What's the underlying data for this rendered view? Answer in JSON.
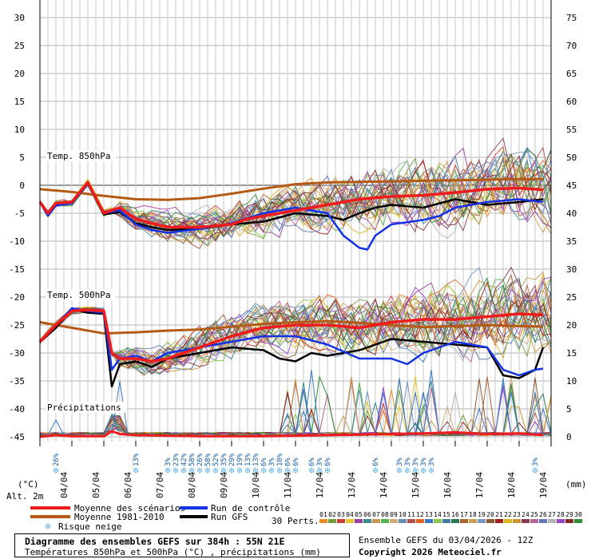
{
  "chart_data": {
    "type": "line",
    "title": "Diagramme des ensembles GEFS sur 384h : 55N 21E",
    "subtitle": "Températures 850hPa et 500hPa (°C) , précipitations (mm)",
    "run_info": "Ensemble GEFS du 03/04/2026 - 12Z",
    "copyright": "Copyright 2026 Meteociel.fr",
    "left_unit": "(°C)",
    "right_unit": "(mm)",
    "alt_label": "Alt. 2m",
    "left_ylim": [
      -45,
      30
    ],
    "right_ylim": [
      0,
      75
    ],
    "left_ticks": [
      "30",
      "25",
      "20",
      "15",
      "10",
      "5",
      "0",
      "-5",
      "-10",
      "-15",
      "-20",
      "-25",
      "-30",
      "-35",
      "-40",
      "-45"
    ],
    "right_ticks": [
      "75",
      "70",
      "65",
      "60",
      "55",
      "50",
      "45",
      "40",
      "35",
      "30",
      "25",
      "20",
      "15",
      "10",
      "5",
      "0"
    ],
    "dates": [
      "04/04",
      "05/04",
      "06/04",
      "07/04",
      "08/04",
      "09/04",
      "10/04",
      "11/04",
      "12/04",
      "13/04",
      "14/04",
      "15/04",
      "16/04",
      "17/04",
      "18/04",
      "19/04"
    ],
    "section_labels": [
      "Temp. 850hPa",
      "Temp. 500hPa",
      "Précipitations"
    ],
    "snow_risk": [
      {
        "t": 0.5,
        "pct": "26%"
      },
      {
        "t": 3.0,
        "pct": "13%"
      },
      {
        "t": 4.0,
        "pct": "3%"
      },
      {
        "t": 4.25,
        "pct": "23%"
      },
      {
        "t": 4.5,
        "pct": "42%"
      },
      {
        "t": 4.75,
        "pct": "58%"
      },
      {
        "t": 5.0,
        "pct": "26%"
      },
      {
        "t": 5.25,
        "pct": "58%"
      },
      {
        "t": 5.5,
        "pct": "52%"
      },
      {
        "t": 5.75,
        "pct": "35%"
      },
      {
        "t": 6.0,
        "pct": "29%"
      },
      {
        "t": 6.25,
        "pct": "19%"
      },
      {
        "t": 6.5,
        "pct": "13%"
      },
      {
        "t": 6.75,
        "pct": "13%"
      },
      {
        "t": 7.0,
        "pct": "6%"
      },
      {
        "t": 7.25,
        "pct": "3%"
      },
      {
        "t": 7.5,
        "pct": "10%"
      },
      {
        "t": 7.75,
        "pct": "6%"
      },
      {
        "t": 8.0,
        "pct": "6%"
      },
      {
        "t": 8.5,
        "pct": "6%"
      },
      {
        "t": 8.75,
        "pct": "3%"
      },
      {
        "t": 9.0,
        "pct": "6%"
      },
      {
        "t": 10.5,
        "pct": "6%"
      },
      {
        "t": 11.25,
        "pct": "3%"
      },
      {
        "t": 11.5,
        "pct": "3%"
      },
      {
        "t": 11.75,
        "pct": "3%"
      },
      {
        "t": 12.0,
        "pct": "3%"
      },
      {
        "t": 12.25,
        "pct": "3%"
      },
      {
        "t": 15.5,
        "pct": "3%"
      }
    ],
    "legend": {
      "mean": "Moyenne des scénarios",
      "climo": "Moyenne 1981-2010",
      "snow": "Risque neige",
      "control": "Run de contrôle",
      "gfs": "Run GFS",
      "perts": "30 Perts."
    },
    "colors": {
      "mean": "#ee1c1c",
      "climo": "#b45a14",
      "control": "#1432e6",
      "gfs": "#000000",
      "grid": "#b4b4b4",
      "snow": "#66b3e6"
    },
    "pert_labels": [
      "01",
      "02",
      "03",
      "04",
      "05",
      "06",
      "07",
      "08",
      "09",
      "10",
      "11",
      "12",
      "13",
      "14",
      "15",
      "16",
      "17",
      "18",
      "19",
      "20",
      "21",
      "22",
      "23",
      "24",
      "25",
      "26",
      "27",
      "28",
      "29",
      "30"
    ],
    "pert_colors": [
      "#f08c28",
      "#6ea03c",
      "#c83c3c",
      "#e8c828",
      "#9c3ca0",
      "#3c8c8c",
      "#c89650",
      "#50b450",
      "#d2aa78",
      "#648cb4",
      "#b45050",
      "#e6641e",
      "#3c78c8",
      "#8cc850",
      "#4678a0",
      "#287850",
      "#aa6432",
      "#c8a050",
      "#7896c8",
      "#8c5a32",
      "#a01e1e",
      "#dcb41e",
      "#c89632",
      "#8c3c50",
      "#b46496",
      "#6478b4",
      "#b4b4b4",
      "#9646c8",
      "#822828",
      "#328c32"
    ],
    "t850": {
      "mean": [
        [
          0,
          -3
        ],
        [
          0.25,
          -5
        ],
        [
          0.5,
          -3.2
        ],
        [
          1,
          -3
        ],
        [
          1.5,
          0.5
        ],
        [
          2,
          -5
        ],
        [
          2.5,
          -4
        ],
        [
          3,
          -6
        ],
        [
          3.5,
          -6.8
        ],
        [
          4,
          -7.5
        ],
        [
          5,
          -7.5
        ],
        [
          6,
          -7
        ],
        [
          6.5,
          -6
        ],
        [
          7,
          -5.5
        ],
        [
          8,
          -4.5
        ],
        [
          9,
          -3.5
        ],
        [
          10,
          -2.5
        ],
        [
          11,
          -2
        ],
        [
          12,
          -1.8
        ],
        [
          13,
          -1.3
        ],
        [
          14,
          -0.7
        ],
        [
          15,
          -0.5
        ],
        [
          15.75,
          -0.8
        ]
      ],
      "climo": [
        [
          0,
          -0.7
        ],
        [
          1,
          -1.2
        ],
        [
          2,
          -1.9
        ],
        [
          3,
          -2.5
        ],
        [
          4,
          -2.6
        ],
        [
          5,
          -2.3
        ],
        [
          6,
          -1.5
        ],
        [
          7,
          -0.6
        ],
        [
          8,
          0.2
        ],
        [
          9,
          0.5
        ],
        [
          10,
          0.6
        ],
        [
          11,
          0.7
        ],
        [
          12,
          0.8
        ],
        [
          13,
          0.9
        ],
        [
          14,
          1.0
        ],
        [
          15,
          1.1
        ],
        [
          15.75,
          1.1
        ]
      ],
      "control": [
        [
          0,
          -3
        ],
        [
          0.25,
          -5.5
        ],
        [
          0.5,
          -3.6
        ],
        [
          1,
          -3.2
        ],
        [
          1.5,
          0.2
        ],
        [
          2,
          -5
        ],
        [
          2.5,
          -4.5
        ],
        [
          3,
          -7
        ],
        [
          3.5,
          -8
        ],
        [
          4,
          -8.5
        ],
        [
          5,
          -7.8
        ],
        [
          6,
          -6.8
        ],
        [
          7,
          -5
        ],
        [
          8,
          -4
        ],
        [
          9,
          -5
        ],
        [
          9.5,
          -9
        ],
        [
          10,
          -11.2
        ],
        [
          10.25,
          -11.5
        ],
        [
          10.5,
          -9
        ],
        [
          11,
          -7
        ],
        [
          12,
          -6.2
        ],
        [
          12.5,
          -5.5
        ],
        [
          13,
          -4
        ],
        [
          14,
          -3
        ],
        [
          15,
          -2.5
        ],
        [
          15.75,
          -3
        ]
      ],
      "gfs": [
        [
          0,
          -3
        ],
        [
          0.25,
          -5
        ],
        [
          0.5,
          -3.5
        ],
        [
          1,
          -3.2
        ],
        [
          1.5,
          0.3
        ],
        [
          2,
          -5.2
        ],
        [
          2.5,
          -4.8
        ],
        [
          3,
          -6.8
        ],
        [
          3.5,
          -7.5
        ],
        [
          4,
          -8
        ],
        [
          5,
          -7.8
        ],
        [
          6,
          -7
        ],
        [
          7,
          -6.5
        ],
        [
          8,
          -5
        ],
        [
          9,
          -5.5
        ],
        [
          9.5,
          -6.2
        ],
        [
          10,
          -5
        ],
        [
          10.5,
          -4
        ],
        [
          11,
          -3.5
        ],
        [
          12,
          -4
        ],
        [
          13,
          -2.5
        ],
        [
          14,
          -3.5
        ],
        [
          15,
          -3
        ],
        [
          15.75,
          -2.5
        ]
      ]
    },
    "t500": {
      "mean": [
        [
          0,
          -28
        ],
        [
          0.5,
          -25
        ],
        [
          1,
          -22.5
        ],
        [
          1.5,
          -22.3
        ],
        [
          2,
          -22.5
        ],
        [
          2.25,
          -30
        ],
        [
          2.5,
          -31
        ],
        [
          3,
          -31
        ],
        [
          3.5,
          -31.5
        ],
        [
          4,
          -31
        ],
        [
          5,
          -29
        ],
        [
          6,
          -27
        ],
        [
          7,
          -25.5
        ],
        [
          8,
          -25
        ],
        [
          9,
          -25
        ],
        [
          10,
          -25.5
        ],
        [
          11,
          -24.5
        ],
        [
          12,
          -24
        ],
        [
          13,
          -24
        ],
        [
          14,
          -23.5
        ],
        [
          15,
          -23
        ],
        [
          15.75,
          -23.2
        ]
      ],
      "climo": [
        [
          0,
          -24.5
        ],
        [
          1,
          -25.5
        ],
        [
          2,
          -26.5
        ],
        [
          3,
          -26.3
        ],
        [
          4,
          -26
        ],
        [
          5,
          -25.8
        ],
        [
          6,
          -25.3
        ],
        [
          7,
          -24.8
        ],
        [
          8,
          -24.5
        ],
        [
          9,
          -24.3
        ],
        [
          10,
          -24.6
        ],
        [
          11,
          -25
        ],
        [
          12,
          -25.4
        ],
        [
          13,
          -25.2
        ],
        [
          14,
          -25
        ],
        [
          15,
          -25.2
        ],
        [
          15.75,
          -25.3
        ]
      ],
      "control": [
        [
          0,
          -28
        ],
        [
          0.5,
          -25
        ],
        [
          1,
          -22
        ],
        [
          1.5,
          -22.5
        ],
        [
          2,
          -22.8
        ],
        [
          2.25,
          -33
        ],
        [
          2.5,
          -31
        ],
        [
          3,
          -30.5
        ],
        [
          3.5,
          -31.5
        ],
        [
          4,
          -30
        ],
        [
          5,
          -29
        ],
        [
          6,
          -28
        ],
        [
          7,
          -27
        ],
        [
          8,
          -27
        ],
        [
          9,
          -28.5
        ],
        [
          10,
          -31
        ],
        [
          11,
          -31
        ],
        [
          11.5,
          -32
        ],
        [
          12,
          -30
        ],
        [
          13,
          -28
        ],
        [
          14,
          -29
        ],
        [
          14.5,
          -33
        ],
        [
          15,
          -34
        ],
        [
          15.5,
          -33
        ],
        [
          15.75,
          -32.8
        ]
      ],
      "gfs": [
        [
          0,
          -28
        ],
        [
          0.5,
          -25.5
        ],
        [
          1,
          -22.2
        ],
        [
          1.5,
          -22.8
        ],
        [
          2,
          -23
        ],
        [
          2.25,
          -36
        ],
        [
          2.5,
          -32
        ],
        [
          3,
          -31.5
        ],
        [
          3.5,
          -32.5
        ],
        [
          4,
          -31
        ],
        [
          5,
          -30
        ],
        [
          6,
          -29
        ],
        [
          7,
          -29.5
        ],
        [
          7.5,
          -31
        ],
        [
          8,
          -31.5
        ],
        [
          8.5,
          -30
        ],
        [
          9,
          -30.5
        ],
        [
          10,
          -29.5
        ],
        [
          11,
          -27.5
        ],
        [
          12,
          -28
        ],
        [
          13,
          -28.5
        ],
        [
          14,
          -29
        ],
        [
          14.5,
          -34
        ],
        [
          15,
          -34.5
        ],
        [
          15.5,
          -33
        ],
        [
          15.75,
          -29
        ]
      ]
    },
    "precip": {
      "mean": [
        [
          0,
          0
        ],
        [
          0.5,
          0.3
        ],
        [
          1,
          0.1
        ],
        [
          2,
          0.1
        ],
        [
          2.25,
          1.0
        ],
        [
          2.5,
          0.5
        ],
        [
          3,
          0.3
        ],
        [
          4,
          0.2
        ],
        [
          5,
          0.1
        ],
        [
          6,
          0.1
        ],
        [
          7,
          0.1
        ],
        [
          8,
          0.2
        ],
        [
          9,
          0.3
        ],
        [
          10,
          0.4
        ],
        [
          11,
          0.5
        ],
        [
          12,
          0.6
        ],
        [
          13,
          0.8
        ],
        [
          14,
          0.5
        ],
        [
          15,
          0.6
        ],
        [
          15.75,
          0.3
        ]
      ],
      "spikes": [
        [
          0.5,
          3
        ],
        [
          2.25,
          4
        ],
        [
          2.5,
          10
        ],
        [
          8.25,
          8.5
        ],
        [
          8.5,
          12
        ],
        [
          10.75,
          8
        ],
        [
          11.25,
          10.5
        ],
        [
          11.75,
          8
        ],
        [
          12.0,
          8
        ],
        [
          12.25,
          12
        ],
        [
          14.5,
          10.5
        ],
        [
          14.75,
          8
        ],
        [
          15.5,
          8
        ],
        [
          15.75,
          5
        ]
      ]
    }
  }
}
